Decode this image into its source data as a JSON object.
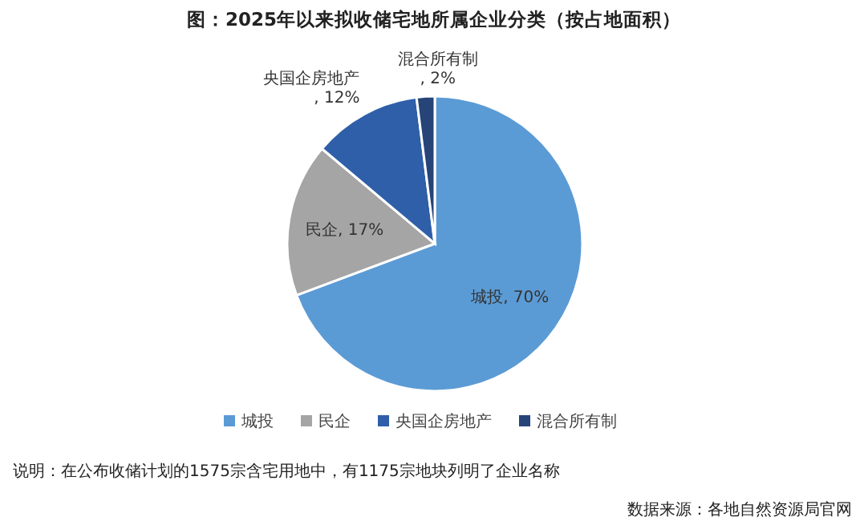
{
  "chart_data": {
    "type": "pie",
    "title": "图：2025年以来拟收储宅地所属企业分类（按占地面积）",
    "categories": [
      "城投",
      "民企",
      "央国企房地产",
      "混合所有制"
    ],
    "values": [
      70,
      17,
      12,
      2
    ],
    "value_labels": [
      ", 70%",
      ", 17%",
      ", 12%",
      ", 2%"
    ],
    "colors": [
      "#5b9bd5",
      "#a5a5a5",
      "#2f5fa8",
      "#264478"
    ],
    "legend": "bottom",
    "annotations": [
      "说明：在公布收储计划的1575宗含宅用地中，有1175宗地块列明了企业名称",
      "数据来源：各地自然资源局官网"
    ]
  }
}
